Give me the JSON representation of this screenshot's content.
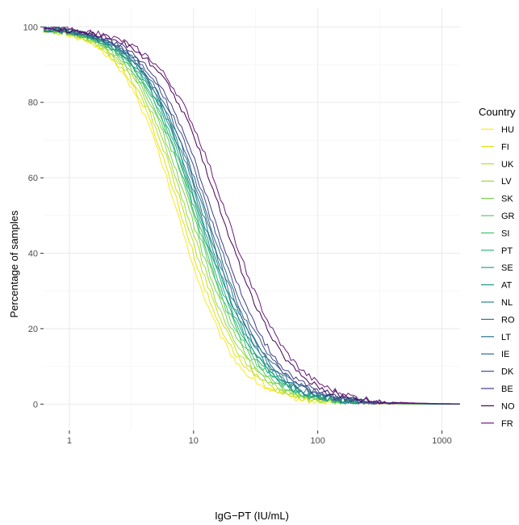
{
  "chart_data": {
    "type": "line",
    "title": "",
    "xlabel": "IgG−PT (IU/mL)",
    "ylabel": "Percentage of samples",
    "x_scale": "log10",
    "xlim": [
      0.62,
      1400
    ],
    "ylim": [
      -7,
      105
    ],
    "x_ticks": [
      1,
      10,
      100,
      1000
    ],
    "x_tick_labels": [
      "1",
      "10",
      "100",
      "1000"
    ],
    "y_ticks": [
      0,
      20,
      40,
      60,
      80,
      100
    ],
    "y_tick_labels": [
      "0",
      "20",
      "40",
      "60",
      "80",
      "100"
    ],
    "grid": true,
    "legend": {
      "title": "Country",
      "position": "right"
    },
    "series": [
      {
        "name": "HU",
        "color": "#fde725",
        "median": 7.5,
        "steep": 1.1
      },
      {
        "name": "FI",
        "color": "#dfe318",
        "median": 8.0,
        "steep": 1.08
      },
      {
        "name": "UK",
        "color": "#bddf26",
        "median": 8.5,
        "steep": 1.07
      },
      {
        "name": "LV",
        "color": "#9bd93c",
        "median": 9.0,
        "steep": 1.06
      },
      {
        "name": "SK",
        "color": "#7ad151",
        "median": 9.5,
        "steep": 1.05
      },
      {
        "name": "GR",
        "color": "#5ec962",
        "median": 10.0,
        "steep": 1.04
      },
      {
        "name": "SI",
        "color": "#44bf70",
        "median": 10.3,
        "steep": 1.04
      },
      {
        "name": "PT",
        "color": "#2fb47c",
        "median": 10.6,
        "steep": 1.03
      },
      {
        "name": "SE",
        "color": "#22a884",
        "median": 11.0,
        "steep": 1.03
      },
      {
        "name": "AT",
        "color": "#1f9e89",
        "median": 11.3,
        "steep": 1.02
      },
      {
        "name": "NL",
        "color": "#23888e",
        "median": 11.6,
        "steep": 1.02
      },
      {
        "name": "RO",
        "color": "#287c8e",
        "median": 12.0,
        "steep": 1.01
      },
      {
        "name": "LT",
        "color": "#2c728e",
        "median": 12.4,
        "steep": 1.01
      },
      {
        "name": "IE",
        "color": "#31688e",
        "median": 12.8,
        "steep": 1.0
      },
      {
        "name": "DK",
        "color": "#3b528b",
        "median": 13.5,
        "steep": 1.0
      },
      {
        "name": "BE",
        "color": "#433e85",
        "median": 14.5,
        "steep": 0.99
      },
      {
        "name": "NO",
        "color": "#440154",
        "median": 17.0,
        "steep": 0.97
      },
      {
        "name": "FR",
        "color": "#6a1b7a",
        "median": 18.5,
        "steep": 0.96
      }
    ]
  }
}
